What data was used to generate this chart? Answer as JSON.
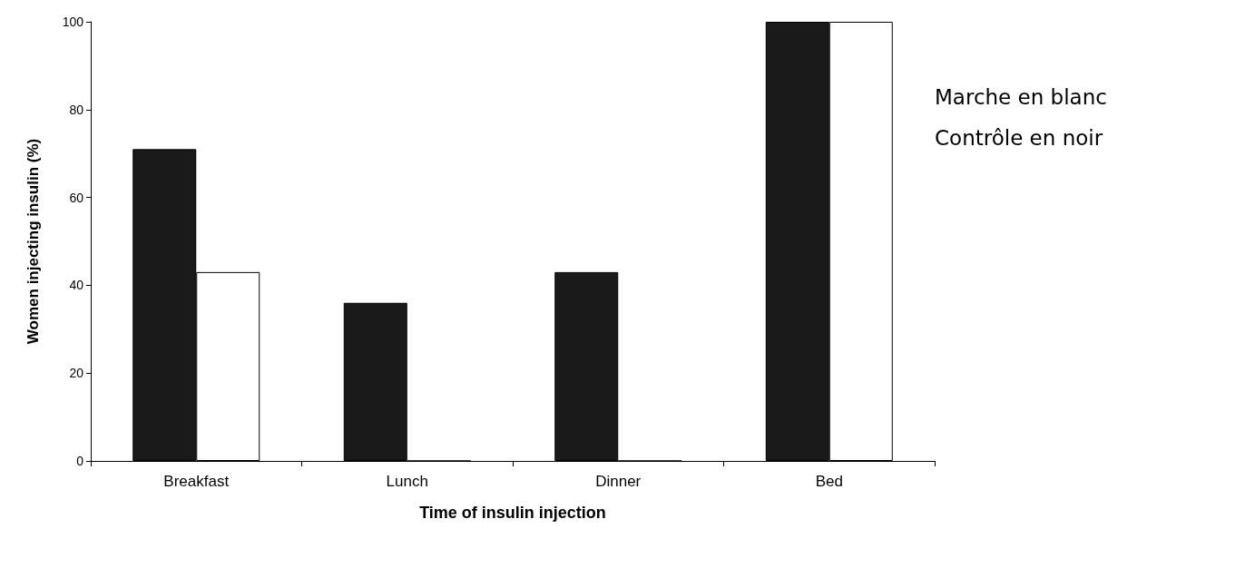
{
  "chart_data": {
    "type": "bar",
    "xlabel": "Time of insulin injection",
    "ylabel": "Women injecting insulin (%)",
    "categories": [
      "Breakfast",
      "Lunch",
      "Dinner",
      "Bed"
    ],
    "series": [
      {
        "color": "#1a1a1a",
        "values": [
          71,
          36,
          43,
          100
        ]
      },
      {
        "color": "#ffffff",
        "values": [
          43,
          0,
          0,
          100
        ]
      }
    ],
    "ylim": [
      0,
      100
    ],
    "yticks": [
      0,
      20,
      40,
      60,
      80,
      100
    ],
    "grid": false,
    "annotations": [
      "Marche en blanc",
      "Contrôle en noir"
    ]
  }
}
